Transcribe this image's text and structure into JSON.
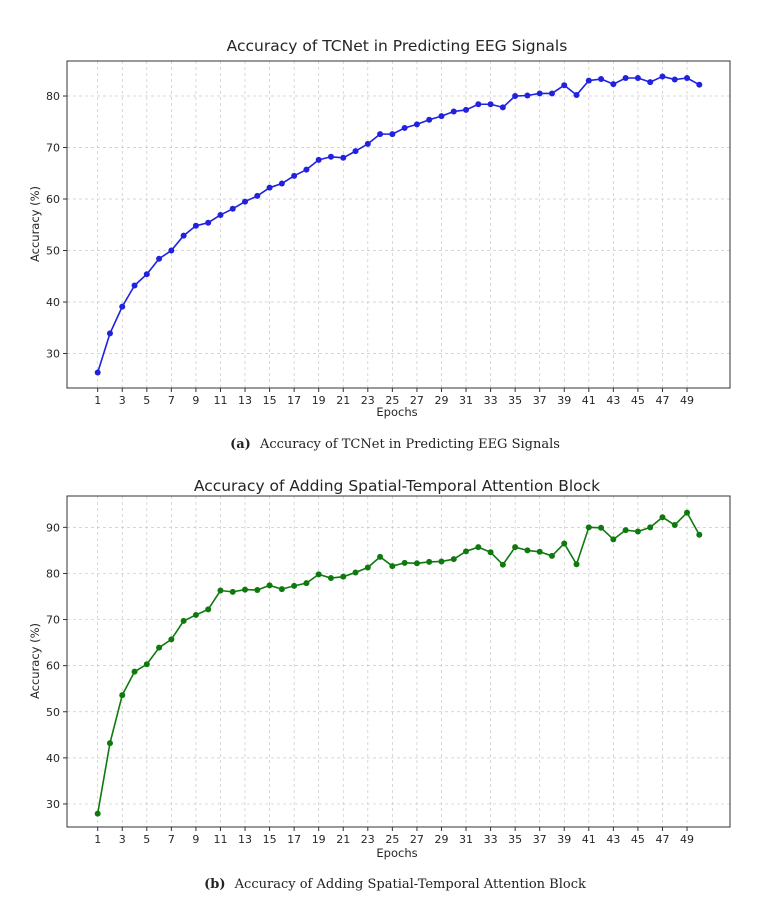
{
  "chart_data": [
    {
      "type": "line",
      "title": "Accuracy of TCNet in Predicting EEG Signals",
      "caption_tag": "(a)",
      "caption": "Accuracy of TCNet in Predicting EEG Signals",
      "xlabel": "Epochs",
      "ylabel": "Accuracy (%)",
      "color": "#2121e0",
      "grid": true,
      "xlim": [
        -1.5,
        52.5
      ],
      "ylim": [
        23.3,
        86.8
      ],
      "xticks": [
        1,
        3,
        5,
        7,
        9,
        11,
        13,
        15,
        17,
        19,
        21,
        23,
        25,
        27,
        29,
        31,
        33,
        35,
        37,
        39,
        41,
        43,
        45,
        47,
        49
      ],
      "yticks": [
        30,
        40,
        50,
        60,
        70,
        80
      ],
      "x": [
        1,
        2,
        3,
        4,
        5,
        6,
        7,
        8,
        9,
        10,
        11,
        12,
        13,
        14,
        15,
        16,
        17,
        18,
        19,
        20,
        21,
        22,
        23,
        24,
        25,
        26,
        27,
        28,
        29,
        30,
        31,
        32,
        33,
        34,
        35,
        36,
        37,
        38,
        39,
        40,
        41,
        42,
        43,
        44,
        45,
        46,
        47,
        48,
        49,
        50
      ],
      "series": [
        {
          "values": [
            26.3,
            33.9,
            39.1,
            43.2,
            45.4,
            48.4,
            50.0,
            52.9,
            54.8,
            55.4,
            56.9,
            58.1,
            59.5,
            60.6,
            62.2,
            63.0,
            64.5,
            65.7,
            67.6,
            68.2,
            68.0,
            69.3,
            70.7,
            72.6,
            72.6,
            73.8,
            74.5,
            75.4,
            76.1,
            77.0,
            77.3,
            78.4,
            78.4,
            77.8,
            80.0,
            80.1,
            80.5,
            80.5,
            82.1,
            80.2,
            83.0,
            83.3,
            82.3,
            83.5,
            83.5,
            82.7,
            83.8,
            83.2,
            83.5,
            82.2
          ]
        }
      ]
    },
    {
      "type": "line",
      "title": "Accuracy of Adding Spatial-Temporal Attention Block",
      "caption_tag": "(b)",
      "caption": "Accuracy of Adding Spatial-Temporal Attention Block",
      "xlabel": "Epochs",
      "ylabel": "Accuracy (%)",
      "color": "#0e7a0e",
      "grid": true,
      "xlim": [
        -1.5,
        52.5
      ],
      "ylim": [
        25.0,
        96.8
      ],
      "xticks": [
        1,
        3,
        5,
        7,
        9,
        11,
        13,
        15,
        17,
        19,
        21,
        23,
        25,
        27,
        29,
        31,
        33,
        35,
        37,
        39,
        41,
        43,
        45,
        47,
        49
      ],
      "yticks": [
        30,
        40,
        50,
        60,
        70,
        80,
        90
      ],
      "x": [
        1,
        2,
        3,
        4,
        5,
        6,
        7,
        8,
        9,
        10,
        11,
        12,
        13,
        14,
        15,
        16,
        17,
        18,
        19,
        20,
        21,
        22,
        23,
        24,
        25,
        26,
        27,
        28,
        29,
        30,
        31,
        32,
        33,
        34,
        35,
        36,
        37,
        38,
        39,
        40,
        41,
        42,
        43,
        44,
        45,
        46,
        47,
        48,
        49,
        50
      ],
      "series": [
        {
          "values": [
            27.9,
            43.2,
            53.6,
            58.7,
            60.3,
            63.9,
            65.7,
            69.7,
            71.0,
            72.2,
            76.3,
            76.0,
            76.5,
            76.4,
            77.4,
            76.6,
            77.3,
            77.9,
            79.8,
            79.0,
            79.3,
            80.2,
            81.3,
            83.6,
            81.6,
            82.3,
            82.2,
            82.5,
            82.6,
            83.1,
            84.8,
            85.7,
            84.6,
            81.9,
            85.7,
            85.0,
            84.7,
            83.8,
            86.5,
            82.0,
            90.0,
            89.9,
            87.4,
            89.4,
            89.1,
            90.0,
            92.2,
            90.5,
            93.2,
            88.4
          ]
        }
      ]
    }
  ]
}
